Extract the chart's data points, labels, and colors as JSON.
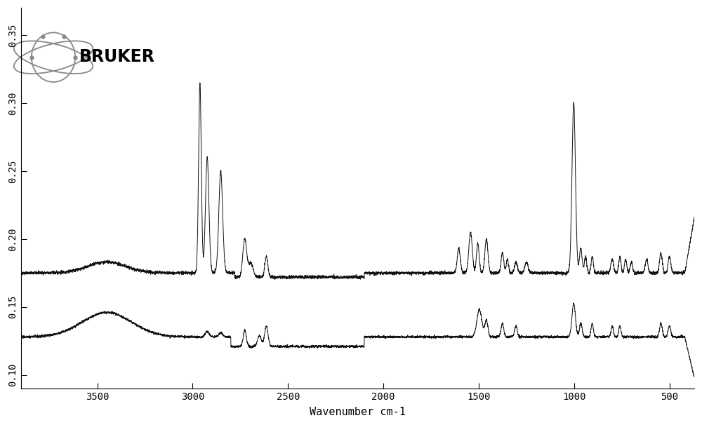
{
  "title": "",
  "xlabel": "Wavenumber cm-1",
  "ylabel": "",
  "xlim": [
    3900,
    370
  ],
  "ylim": [
    0.09,
    0.37
  ],
  "yticks": [
    0.1,
    0.15,
    0.2,
    0.25,
    0.3,
    0.35
  ],
  "xticks": [
    3500,
    3000,
    2500,
    2000,
    1500,
    1000,
    500
  ],
  "background_color": "#ffffff",
  "line_color": "#111111",
  "logo_text": "BRUKER",
  "logo_color": "#000000",
  "atom_color": "#888888"
}
